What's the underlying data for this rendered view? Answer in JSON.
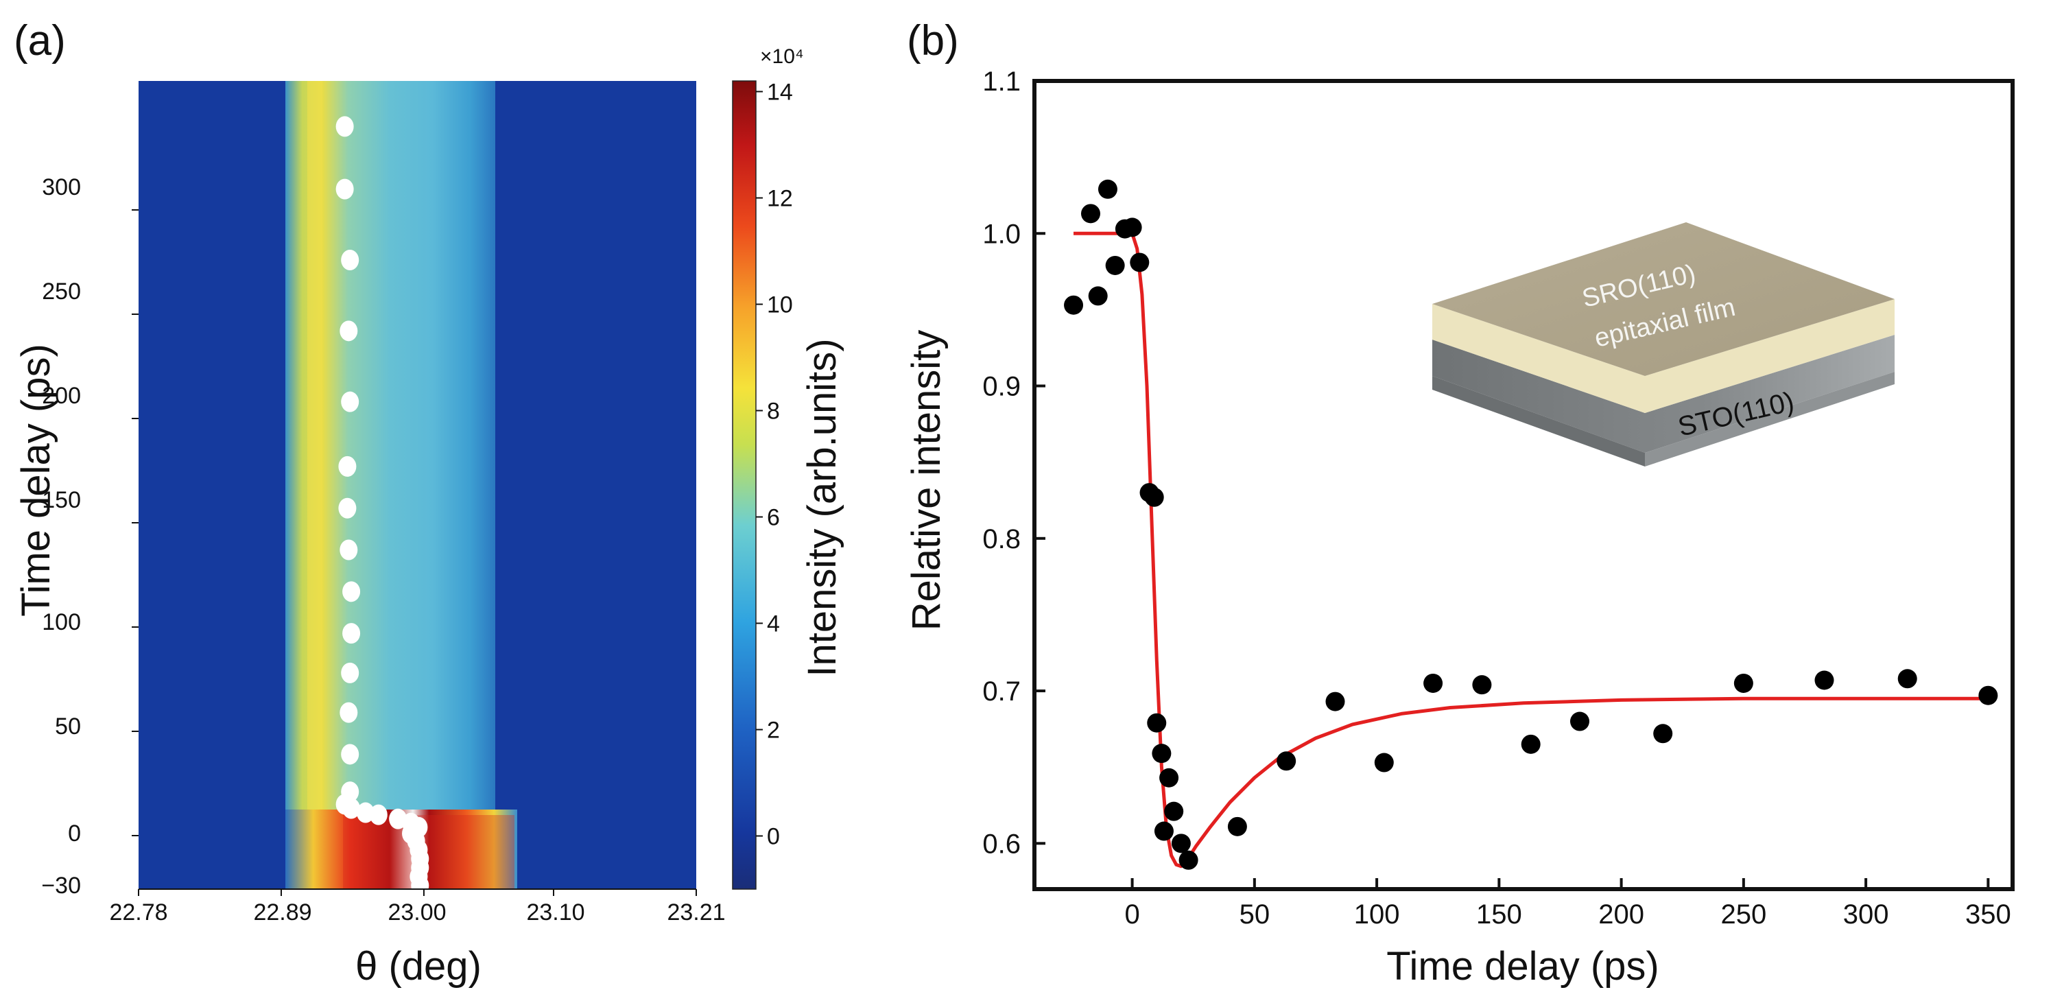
{
  "panel_labels": {
    "a": "(a)",
    "b": "(b)"
  },
  "colors": {
    "line": "#e32020",
    "points": "#000000",
    "white_points": "#ffffff",
    "bg_blue": "#13389a",
    "film_top": "#b0a68e",
    "film_side": "#ece4bf",
    "substrate": "#7e8284"
  },
  "chart_data": [
    {
      "type": "heatmap",
      "xlabel": "θ (deg)",
      "ylabel": "Time delay (ps)",
      "x_ticks": [
        "22.78",
        "22.89",
        "23.00",
        "23.10",
        "23.21"
      ],
      "xlim": [
        22.78,
        23.21
      ],
      "y_ticks_upper": [
        "0",
        "50",
        "100",
        "150",
        "200",
        "250",
        "300"
      ],
      "y_tick_lower": "−30",
      "colorbar": {
        "label": "Intensity (arb.units)",
        "multiplier": "×10⁴",
        "ticks": [
          "0",
          "2",
          "4",
          "6",
          "8",
          "10",
          "12",
          "14"
        ],
        "range": [
          -1,
          14.2
        ]
      },
      "peak_positions": [
        {
          "t": 340,
          "theta": 22.939
        },
        {
          "t": 310,
          "theta": 22.939
        },
        {
          "t": 276,
          "theta": 22.943
        },
        {
          "t": 242,
          "theta": 22.942
        },
        {
          "t": 208,
          "theta": 22.943
        },
        {
          "t": 177,
          "theta": 22.941
        },
        {
          "t": 157,
          "theta": 22.941
        },
        {
          "t": 137,
          "theta": 22.942
        },
        {
          "t": 117,
          "theta": 22.944
        },
        {
          "t": 97,
          "theta": 22.944
        },
        {
          "t": 78,
          "theta": 22.943
        },
        {
          "t": 59,
          "theta": 22.942
        },
        {
          "t": 39,
          "theta": 22.943
        },
        {
          "t": 21,
          "theta": 22.943
        },
        {
          "t": 15,
          "theta": 22.939
        },
        {
          "t": 13,
          "theta": 22.944
        },
        {
          "t": 11,
          "theta": 22.955
        },
        {
          "t": 10,
          "theta": 22.965
        },
        {
          "t": 8,
          "theta": 22.98
        },
        {
          "t": 6,
          "theta": 22.99
        },
        {
          "t": 4,
          "theta": 22.996
        },
        {
          "t": 1,
          "theta": 22.99
        },
        {
          "t": -3,
          "theta": 22.994
        },
        {
          "t": -8,
          "theta": 22.996
        },
        {
          "t": -13,
          "theta": 22.997
        },
        {
          "t": -18,
          "theta": 22.997
        },
        {
          "t": -23,
          "theta": 22.996
        },
        {
          "t": -28,
          "theta": 22.997
        }
      ]
    },
    {
      "type": "scatter",
      "xlabel": "Time delay (ps)",
      "ylabel": "Relative intensity",
      "xlim": [
        -40,
        360
      ],
      "ylim": [
        0.57,
        1.1
      ],
      "x_ticks": [
        "0",
        "50",
        "100",
        "150",
        "200",
        "250",
        "300",
        "350"
      ],
      "y_ticks": [
        "0.6",
        "0.7",
        "0.8",
        "0.9",
        "1.0",
        "1.1"
      ],
      "points": [
        {
          "x": -24,
          "y": 0.953
        },
        {
          "x": -17,
          "y": 1.013
        },
        {
          "x": -14,
          "y": 0.959
        },
        {
          "x": -10,
          "y": 1.029
        },
        {
          "x": -7,
          "y": 0.979
        },
        {
          "x": -3,
          "y": 1.003
        },
        {
          "x": 0,
          "y": 1.004
        },
        {
          "x": 3,
          "y": 0.981
        },
        {
          "x": 7,
          "y": 0.83
        },
        {
          "x": 9,
          "y": 0.827
        },
        {
          "x": 10,
          "y": 0.679
        },
        {
          "x": 12,
          "y": 0.659
        },
        {
          "x": 13,
          "y": 0.608
        },
        {
          "x": 15,
          "y": 0.643
        },
        {
          "x": 17,
          "y": 0.621
        },
        {
          "x": 20,
          "y": 0.6
        },
        {
          "x": 23,
          "y": 0.589
        },
        {
          "x": 43,
          "y": 0.611
        },
        {
          "x": 63,
          "y": 0.654
        },
        {
          "x": 83,
          "y": 0.693
        },
        {
          "x": 103,
          "y": 0.653
        },
        {
          "x": 123,
          "y": 0.705
        },
        {
          "x": 143,
          "y": 0.704
        },
        {
          "x": 163,
          "y": 0.665
        },
        {
          "x": 183,
          "y": 0.68
        },
        {
          "x": 217,
          "y": 0.672
        },
        {
          "x": 250,
          "y": 0.705
        },
        {
          "x": 283,
          "y": 0.707
        },
        {
          "x": 317,
          "y": 0.708
        },
        {
          "x": 350,
          "y": 0.697
        }
      ],
      "fit_line": [
        {
          "x": -24,
          "y": 1.0
        },
        {
          "x": 0,
          "y": 1.0
        },
        {
          "x": 2,
          "y": 0.99
        },
        {
          "x": 4,
          "y": 0.96
        },
        {
          "x": 6,
          "y": 0.9
        },
        {
          "x": 8,
          "y": 0.81
        },
        {
          "x": 10,
          "y": 0.72
        },
        {
          "x": 12,
          "y": 0.65
        },
        {
          "x": 14,
          "y": 0.61
        },
        {
          "x": 16,
          "y": 0.592
        },
        {
          "x": 18,
          "y": 0.586
        },
        {
          "x": 20,
          "y": 0.585
        },
        {
          "x": 22,
          "y": 0.588
        },
        {
          "x": 26,
          "y": 0.598
        },
        {
          "x": 32,
          "y": 0.611
        },
        {
          "x": 40,
          "y": 0.627
        },
        {
          "x": 50,
          "y": 0.643
        },
        {
          "x": 60,
          "y": 0.656
        },
        {
          "x": 75,
          "y": 0.669
        },
        {
          "x": 90,
          "y": 0.678
        },
        {
          "x": 110,
          "y": 0.685
        },
        {
          "x": 130,
          "y": 0.689
        },
        {
          "x": 160,
          "y": 0.692
        },
        {
          "x": 200,
          "y": 0.694
        },
        {
          "x": 250,
          "y": 0.695
        },
        {
          "x": 300,
          "y": 0.695
        },
        {
          "x": 350,
          "y": 0.695
        }
      ],
      "inset": {
        "film_label_1": "SRO(110)",
        "film_label_2": "epitaxial film",
        "substrate_label": "STO(110)"
      }
    }
  ]
}
